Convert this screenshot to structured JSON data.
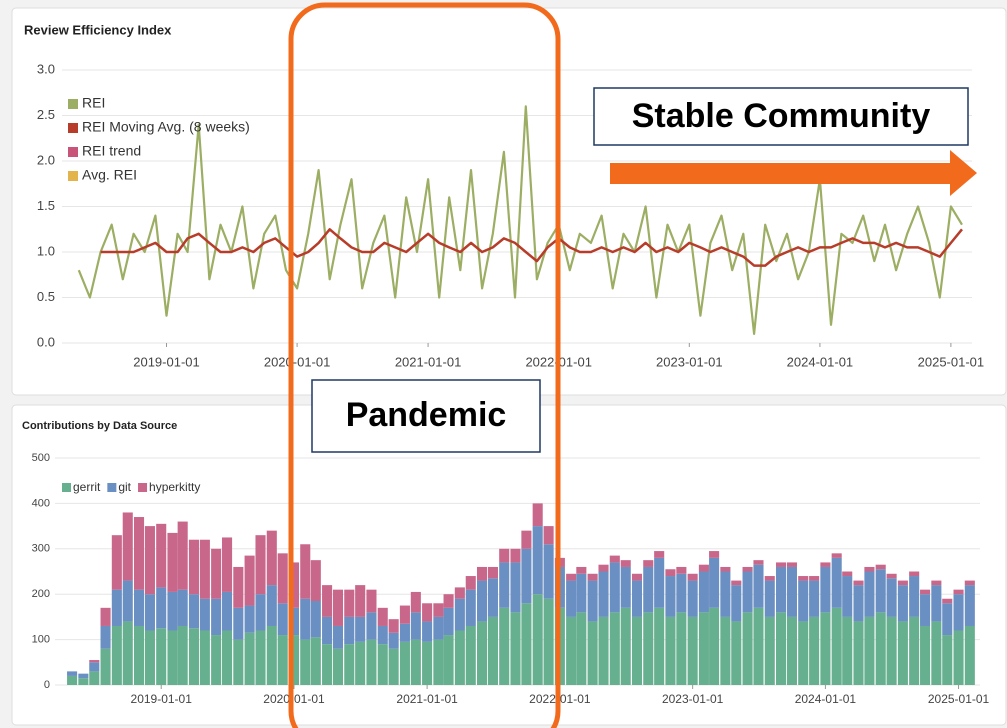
{
  "chart_data": [
    {
      "type": "line",
      "title": "Review Efficiency Index",
      "x": [
        "2018-05-01",
        "2018-06-01",
        "2018-07-01",
        "2018-08-01",
        "2018-09-01",
        "2018-10-01",
        "2018-11-01",
        "2018-12-01",
        "2019-01-01",
        "2019-02-01",
        "2019-03-01",
        "2019-04-01",
        "2019-05-01",
        "2019-06-01",
        "2019-07-01",
        "2019-08-01",
        "2019-09-01",
        "2019-10-01",
        "2019-11-01",
        "2019-12-01",
        "2020-01-01",
        "2020-02-01",
        "2020-03-01",
        "2020-04-01",
        "2020-05-01",
        "2020-06-01",
        "2020-07-01",
        "2020-08-01",
        "2020-09-01",
        "2020-10-01",
        "2020-11-01",
        "2020-12-01",
        "2021-01-01",
        "2021-02-01",
        "2021-03-01",
        "2021-04-01",
        "2021-05-01",
        "2021-06-01",
        "2021-07-01",
        "2021-08-01",
        "2021-09-01",
        "2021-10-01",
        "2021-11-01",
        "2021-12-01",
        "2022-01-01",
        "2022-02-01",
        "2022-03-01",
        "2022-04-01",
        "2022-05-01",
        "2022-06-01",
        "2022-07-01",
        "2022-08-01",
        "2022-09-01",
        "2022-10-01",
        "2022-11-01",
        "2022-12-01",
        "2023-01-01",
        "2023-02-01",
        "2023-03-01",
        "2023-04-01",
        "2023-05-01",
        "2023-06-01",
        "2023-07-01",
        "2023-08-01",
        "2023-09-01",
        "2023-10-01",
        "2023-11-01",
        "2023-12-01",
        "2024-01-01",
        "2024-02-01",
        "2024-03-01",
        "2024-04-01",
        "2024-05-01",
        "2024-06-01",
        "2024-07-01",
        "2024-08-01",
        "2024-09-01",
        "2024-10-01",
        "2024-11-01",
        "2024-12-01",
        "2025-01-01",
        "2025-02-01"
      ],
      "series": [
        {
          "name": "REI",
          "color": "#9cae63",
          "values": [
            0.8,
            0.5,
            1.0,
            1.3,
            0.7,
            1.2,
            1.0,
            1.4,
            0.3,
            1.2,
            1.0,
            2.4,
            0.7,
            1.3,
            1.0,
            1.5,
            0.6,
            1.2,
            1.4,
            0.8,
            0.6,
            1.2,
            1.9,
            0.7,
            1.3,
            1.8,
            0.6,
            1.1,
            1.4,
            0.5,
            1.6,
            1.0,
            1.8,
            0.5,
            1.6,
            0.8,
            1.9,
            0.6,
            1.2,
            2.1,
            0.5,
            2.6,
            0.7,
            1.1,
            1.3,
            0.8,
            1.2,
            1.1,
            1.4,
            0.6,
            1.2,
            1.0,
            1.5,
            0.5,
            1.3,
            1.0,
            1.3,
            0.3,
            1.1,
            1.4,
            0.8,
            1.2,
            0.1,
            1.3,
            0.9,
            1.2,
            0.7,
            1.0,
            1.8,
            0.2,
            1.2,
            1.1,
            1.4,
            0.9,
            1.3,
            0.8,
            1.2,
            1.5,
            1.1,
            0.5,
            1.5,
            1.3
          ]
        },
        {
          "name": "REI Moving Avg. (8 weeks)",
          "color": "#b83c2a",
          "values": [
            null,
            null,
            1.0,
            1.0,
            1.0,
            1.0,
            1.05,
            1.1,
            1.0,
            1.0,
            1.15,
            1.2,
            1.1,
            1.0,
            1.0,
            1.05,
            1.0,
            1.1,
            1.15,
            1.05,
            0.95,
            1.0,
            1.1,
            1.25,
            1.15,
            1.05,
            1.0,
            1.0,
            1.1,
            1.05,
            1.0,
            1.1,
            1.2,
            1.1,
            1.05,
            1.0,
            1.1,
            1.0,
            1.05,
            1.15,
            1.1,
            1.0,
            0.9,
            1.05,
            1.15,
            1.05,
            1.0,
            1.0,
            1.05,
            1.0,
            1.05,
            1.0,
            1.1,
            1.0,
            1.05,
            1.0,
            1.1,
            1.05,
            1.0,
            1.05,
            1.0,
            0.95,
            0.85,
            0.85,
            0.95,
            1.0,
            1.05,
            1.0,
            1.05,
            1.05,
            1.1,
            1.15,
            1.1,
            1.1,
            1.05,
            1.1,
            1.05,
            1.05,
            1.0,
            0.95,
            1.1,
            1.25
          ]
        },
        {
          "name": "REI trend",
          "color": "#c9547a",
          "values": [
            null,
            null,
            null,
            null,
            null,
            null,
            null,
            null,
            null,
            null,
            null,
            null,
            null,
            null,
            null,
            null,
            null,
            null,
            null,
            null,
            null,
            null,
            null,
            null,
            null,
            null,
            null,
            null,
            null,
            null,
            null,
            null,
            null,
            null,
            null,
            null,
            null,
            null,
            null,
            null,
            null,
            null,
            null,
            null,
            null,
            null,
            null,
            null,
            null,
            null,
            null,
            null,
            null,
            null,
            null,
            null,
            null,
            null,
            null,
            null,
            null,
            null,
            null,
            null,
            null,
            null,
            null,
            null,
            null,
            null,
            null,
            null,
            null,
            null,
            null,
            null,
            null,
            null,
            null,
            null,
            null,
            null
          ]
        },
        {
          "name": "Avg. REI",
          "color": "#e3b34c",
          "values": [
            null,
            null,
            null,
            null,
            null,
            null,
            null,
            null,
            null,
            null,
            null,
            null,
            null,
            null,
            null,
            null,
            null,
            null,
            null,
            null,
            null,
            null,
            null,
            null,
            null,
            null,
            null,
            null,
            null,
            null,
            null,
            null,
            null,
            null,
            null,
            null,
            null,
            null,
            null,
            null,
            null,
            null,
            null,
            null,
            null,
            null,
            null,
            null,
            null,
            null,
            null,
            null,
            null,
            null,
            null,
            null,
            null,
            null,
            null,
            null,
            null,
            null,
            null,
            null,
            null,
            null,
            null,
            null,
            null,
            null,
            null,
            null,
            null,
            null,
            null,
            null,
            null,
            null,
            null,
            null,
            null,
            null
          ]
        }
      ],
      "xlim": [
        "2018-03-15",
        "2025-03-01"
      ],
      "xticks": [
        "2019-01-01",
        "2020-01-01",
        "2021-01-01",
        "2022-01-01",
        "2023-01-01",
        "2024-01-01",
        "2025-01-01"
      ],
      "ylim": [
        0,
        3
      ],
      "yticks": [
        {
          "value": 0,
          "label": "0.0"
        },
        0.5,
        {
          "value": 1,
          "label": "1.0"
        },
        1.5,
        {
          "value": 2,
          "label": "2.0"
        },
        2.5,
        {
          "value": 3,
          "label": "3.0"
        }
      ],
      "grid": true,
      "legend": "top-left"
    },
    {
      "type": "stacked-bar",
      "title": "Contributions by Data Source",
      "x": [
        "2018-05-01",
        "2018-06-01",
        "2018-07-01",
        "2018-08-01",
        "2018-09-01",
        "2018-10-01",
        "2018-11-01",
        "2018-12-01",
        "2019-01-01",
        "2019-02-01",
        "2019-03-01",
        "2019-04-01",
        "2019-05-01",
        "2019-06-01",
        "2019-07-01",
        "2019-08-01",
        "2019-09-01",
        "2019-10-01",
        "2019-11-01",
        "2019-12-01",
        "2020-01-01",
        "2020-02-01",
        "2020-03-01",
        "2020-04-01",
        "2020-05-01",
        "2020-06-01",
        "2020-07-01",
        "2020-08-01",
        "2020-09-01",
        "2020-10-01",
        "2020-11-01",
        "2020-12-01",
        "2021-01-01",
        "2021-02-01",
        "2021-03-01",
        "2021-04-01",
        "2021-05-01",
        "2021-06-01",
        "2021-07-01",
        "2021-08-01",
        "2021-09-01",
        "2021-10-01",
        "2021-11-01",
        "2021-12-01",
        "2022-01-01",
        "2022-02-01",
        "2022-03-01",
        "2022-04-01",
        "2022-05-01",
        "2022-06-01",
        "2022-07-01",
        "2022-08-01",
        "2022-09-01",
        "2022-10-01",
        "2022-11-01",
        "2022-12-01",
        "2023-01-01",
        "2023-02-01",
        "2023-03-01",
        "2023-04-01",
        "2023-05-01",
        "2023-06-01",
        "2023-07-01",
        "2023-08-01",
        "2023-09-01",
        "2023-10-01",
        "2023-11-01",
        "2023-12-01",
        "2024-01-01",
        "2024-02-01",
        "2024-03-01",
        "2024-04-01",
        "2024-05-01",
        "2024-06-01",
        "2024-07-01",
        "2024-08-01",
        "2024-09-01",
        "2024-10-01",
        "2024-11-01",
        "2024-12-01",
        "2025-01-01",
        "2025-02-01"
      ],
      "series": [
        {
          "name": "gerrit",
          "color": "#67b08f",
          "values": [
            20,
            15,
            30,
            80,
            130,
            140,
            130,
            120,
            125,
            120,
            130,
            125,
            120,
            110,
            120,
            100,
            115,
            120,
            130,
            110,
            110,
            100,
            105,
            90,
            80,
            90,
            95,
            100,
            90,
            80,
            95,
            100,
            95,
            100,
            110,
            120,
            130,
            140,
            150,
            170,
            160,
            180,
            200,
            190,
            170,
            150,
            160,
            140,
            150,
            160,
            170,
            150,
            160,
            170,
            150,
            160,
            150,
            160,
            170,
            150,
            140,
            160,
            170,
            150,
            160,
            150,
            140,
            150,
            160,
            170,
            150,
            140,
            150,
            160,
            150,
            140,
            150,
            130,
            140,
            110,
            120,
            130
          ]
        },
        {
          "name": "git",
          "color": "#6a8fc2",
          "values": [
            10,
            10,
            20,
            50,
            80,
            90,
            80,
            80,
            90,
            85,
            80,
            75,
            70,
            80,
            85,
            70,
            60,
            80,
            90,
            70,
            60,
            90,
            80,
            60,
            50,
            60,
            55,
            60,
            40,
            35,
            40,
            60,
            45,
            50,
            60,
            70,
            80,
            90,
            85,
            100,
            110,
            120,
            150,
            120,
            90,
            80,
            85,
            90,
            100,
            110,
            90,
            80,
            100,
            110,
            90,
            85,
            80,
            90,
            110,
            100,
            80,
            90,
            95,
            80,
            100,
            110,
            90,
            80,
            100,
            110,
            90,
            80,
            100,
            95,
            85,
            80,
            90,
            70,
            80,
            70,
            80,
            90
          ]
        },
        {
          "name": "hyperkitty",
          "color": "#c9678b",
          "values": [
            0,
            0,
            5,
            40,
            120,
            150,
            160,
            150,
            140,
            130,
            150,
            120,
            130,
            110,
            120,
            90,
            110,
            130,
            120,
            110,
            100,
            120,
            90,
            70,
            80,
            60,
            70,
            50,
            40,
            30,
            40,
            45,
            40,
            30,
            30,
            25,
            30,
            30,
            25,
            30,
            30,
            40,
            50,
            40,
            20,
            15,
            15,
            15,
            15,
            15,
            15,
            15,
            15,
            15,
            15,
            15,
            15,
            15,
            15,
            10,
            10,
            10,
            10,
            10,
            10,
            10,
            10,
            10,
            10,
            10,
            10,
            10,
            10,
            10,
            10,
            10,
            10,
            10,
            10,
            10,
            10,
            10
          ]
        }
      ],
      "xlim": [
        "2018-03-15",
        "2025-03-01"
      ],
      "xticks": [
        "2019-01-01",
        "2020-01-01",
        "2021-01-01",
        "2022-01-01",
        "2023-01-01",
        "2024-01-01",
        "2025-01-01"
      ],
      "ylim": [
        0,
        500
      ],
      "yticks": [
        0,
        100,
        200,
        300,
        400,
        500
      ],
      "grid": true,
      "legend": "top-left"
    }
  ],
  "annotations": {
    "stable": "Stable Community",
    "pandemic": "Pandemic"
  }
}
